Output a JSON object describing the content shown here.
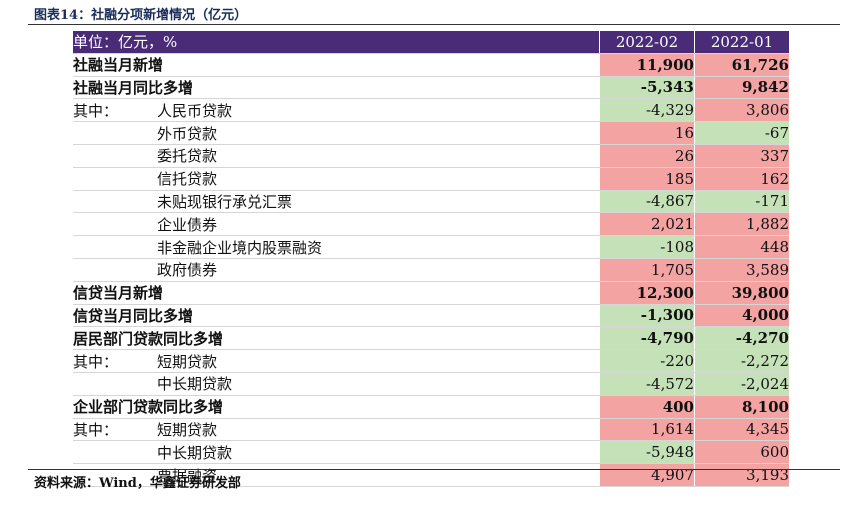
{
  "figure_title": "图表14：社融分项新增情况（亿元）",
  "source": "资料来源：Wind，华鑫证券研发部",
  "colors": {
    "header_bg": "#4a2b78",
    "positive": "#f4a3a3",
    "negative": "#c5e1b8"
  },
  "header": {
    "label": "单位：亿元，%",
    "col1": "2022-02",
    "col2": "2022-01"
  },
  "rows": [
    {
      "prefix": "",
      "label": "社融当月新增",
      "v1": "11,900",
      "v2": "61,726"
    },
    {
      "prefix": "",
      "label": "社融当月同比多增",
      "v1": "-5,343",
      "v2": "9,842"
    },
    {
      "prefix": "其中：",
      "label": "人民币贷款",
      "v1": "-4,329",
      "v2": "3,806"
    },
    {
      "prefix": "",
      "label": "外币贷款",
      "v1": "16",
      "v2": "-67"
    },
    {
      "prefix": "",
      "label": "委托贷款",
      "v1": "26",
      "v2": "337"
    },
    {
      "prefix": "",
      "label": "信托贷款",
      "v1": "185",
      "v2": "162"
    },
    {
      "prefix": "",
      "label": "未贴现银行承兑汇票",
      "v1": "-4,867",
      "v2": "-171"
    },
    {
      "prefix": "",
      "label": "企业债券",
      "v1": "2,021",
      "v2": "1,882"
    },
    {
      "prefix": "",
      "label": "非金融企业境内股票融资",
      "v1": "-108",
      "v2": "448"
    },
    {
      "prefix": "",
      "label": "政府债券",
      "v1": "1,705",
      "v2": "3,589"
    },
    {
      "prefix": "",
      "label": "信贷当月新增",
      "v1": "12,300",
      "v2": "39,800"
    },
    {
      "prefix": "",
      "label": "信贷当月同比多增",
      "v1": "-1,300",
      "v2": "4,000"
    },
    {
      "prefix": "",
      "label": "居民部门贷款同比多增",
      "v1": "-4,790",
      "v2": "-4,270"
    },
    {
      "prefix": "其中：",
      "label": "短期贷款",
      "v1": "-220",
      "v2": "-2,272"
    },
    {
      "prefix": "",
      "label": "中长期贷款",
      "v1": "-4,572",
      "v2": "-2,024"
    },
    {
      "prefix": "",
      "label": "企业部门贷款同比多增",
      "v1": "400",
      "v2": "8,100"
    },
    {
      "prefix": "其中：",
      "label": "短期贷款",
      "v1": "1,614",
      "v2": "4,345"
    },
    {
      "prefix": "",
      "label": "中长期贷款",
      "v1": "-5,948",
      "v2": "600"
    },
    {
      "prefix": "",
      "label": "票据融资",
      "v1": "4,907",
      "v2": "3,193"
    }
  ]
}
